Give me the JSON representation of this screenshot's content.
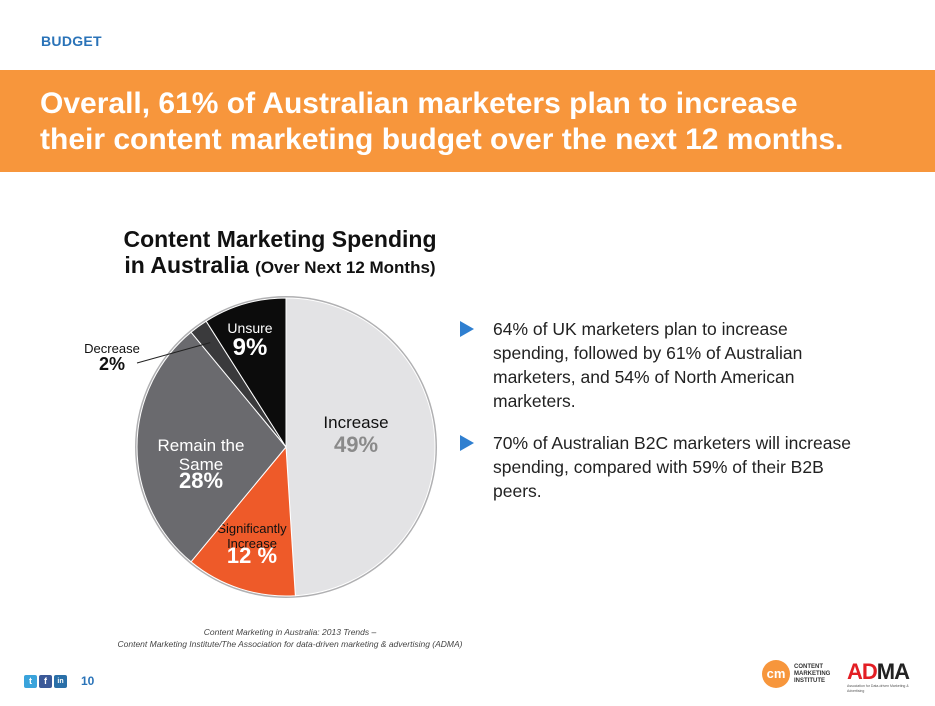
{
  "header": {
    "section_label": "BUDGET",
    "headline_line1": "Overall, 61% of Australian marketers plan to increase",
    "headline_line2": "their content marketing budget over the next 12 months."
  },
  "chart_data": {
    "type": "pie",
    "title": "Content Marketing Spending",
    "title_line2": "in Australia",
    "subtitle": "(Over Next 12 Months)",
    "slices": [
      {
        "label": "Increase",
        "label_lines": [
          "Increase"
        ],
        "value": 49,
        "display": "49%",
        "color": "#e3e3e5",
        "label_color": "#111111",
        "value_color": "#8a8a8a"
      },
      {
        "label": "Significantly Increase",
        "label_lines": [
          "Significantly",
          "Increase"
        ],
        "value": 12,
        "display": "12 %",
        "color": "#ee5a29",
        "label_color": "#111111",
        "value_color": "#ffffff"
      },
      {
        "label": "Remain the Same",
        "label_lines": [
          "Remain the",
          "Same"
        ],
        "value": 28,
        "display": "28%",
        "color": "#6a6a6e",
        "label_color": "#ffffff",
        "value_color": "#ffffff"
      },
      {
        "label": "Decrease",
        "label_lines": [
          "Decrease"
        ],
        "value": 2,
        "display": "2%",
        "color": "#3a3a3c",
        "label_color": "#111111",
        "value_color": "#111111"
      },
      {
        "label": "Unsure",
        "label_lines": [
          "Unsure"
        ],
        "value": 9,
        "display": "9%",
        "color": "#0c0c0c",
        "label_color": "#ffffff",
        "value_color": "#ffffff"
      }
    ]
  },
  "bullets": [
    {
      "text": "64% of UK marketers plan to increase spending, followed by 61% of Australian marketers, and 54% of North American marketers."
    },
    {
      "text": "70% of Australian B2C marketers will increase spending, compared with 59% of their B2B peers."
    }
  ],
  "source": {
    "line1": "Content Marketing in Australia: 2013 Trends –",
    "line2": "Content Marketing Institute/The Association for data-driven marketing & advertising (ADMA)"
  },
  "footer": {
    "page_number": "10",
    "social": [
      {
        "icon": "twitter-icon",
        "glyph": "t",
        "color": "#3aa3db"
      },
      {
        "icon": "facebook-icon",
        "glyph": "f",
        "color": "#3b5998"
      },
      {
        "icon": "linkedin-icon",
        "glyph": "in",
        "color": "#2a6fa8"
      }
    ],
    "cmi_logo": {
      "mark": "cm",
      "text": "CONTENT MARKETING INSTITUTE"
    },
    "adma_logo": {
      "ad": "AD",
      "ma": "MA",
      "tagline": "Association for Data-driven Marketing & Advertising"
    }
  },
  "colors": {
    "accent_orange": "#f7963c",
    "accent_blue": "#2a73b8"
  }
}
